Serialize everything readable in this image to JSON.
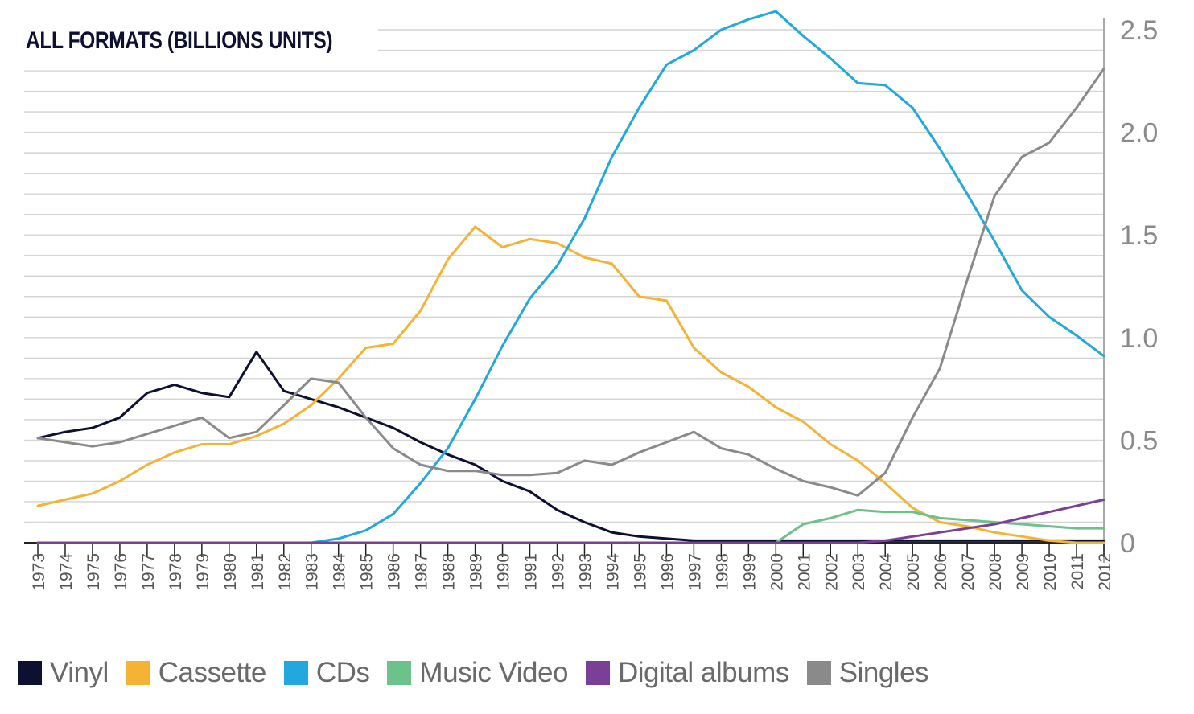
{
  "chart_data": {
    "type": "line",
    "title": "ALL FORMATS (BILLIONS UNITS)",
    "xlabel": "",
    "ylabel": "",
    "ylim": [
      0,
      2.5
    ],
    "yticks": [
      "0",
      "0.5",
      "1.0",
      "1.5",
      "2.0",
      "2.5"
    ],
    "yaxis_side": "right",
    "grid": true,
    "legend_position": "bottom",
    "categories": [
      "1973",
      "1974",
      "1975",
      "1976",
      "1977",
      "1978",
      "1979",
      "1980",
      "1981",
      "1982",
      "1983",
      "1984",
      "1985",
      "1986",
      "1987",
      "1988",
      "1989",
      "1990",
      "1991",
      "1992",
      "1993",
      "1994",
      "1995",
      "1996",
      "1997",
      "1998",
      "1999",
      "2000",
      "2001",
      "2002",
      "2003",
      "2004",
      "2005",
      "2006",
      "2007",
      "2008",
      "2009",
      "2010",
      "2011",
      "2012"
    ],
    "series": [
      {
        "name": "Vinyl",
        "color": "#0d1030",
        "values": [
          0.51,
          0.54,
          0.56,
          0.61,
          0.73,
          0.77,
          0.73,
          0.71,
          0.93,
          0.74,
          0.7,
          0.66,
          0.61,
          0.56,
          0.49,
          0.43,
          0.38,
          0.3,
          0.25,
          0.16,
          0.1,
          0.05,
          0.03,
          0.02,
          0.01,
          0.01,
          0.01,
          0.01,
          0.01,
          0.01,
          0.01,
          0.01,
          0.01,
          0.01,
          0.01,
          0.01,
          0.01,
          0.01,
          0.01,
          0.01
        ]
      },
      {
        "name": "Cassette",
        "color": "#f5b335",
        "values": [
          0.18,
          0.21,
          0.24,
          0.3,
          0.38,
          0.44,
          0.48,
          0.48,
          0.52,
          0.58,
          0.67,
          0.8,
          0.95,
          0.97,
          1.13,
          1.38,
          1.54,
          1.44,
          1.48,
          1.46,
          1.39,
          1.36,
          1.2,
          1.18,
          0.95,
          0.83,
          0.76,
          0.66,
          0.59,
          0.48,
          0.4,
          0.29,
          0.17,
          0.1,
          0.08,
          0.05,
          0.03,
          0.01,
          0.0,
          0.0
        ]
      },
      {
        "name": "CDs",
        "color": "#20a8df",
        "values": [
          0.0,
          0.0,
          0.0,
          0.0,
          0.0,
          0.0,
          0.0,
          0.0,
          0.0,
          0.0,
          0.0,
          0.02,
          0.06,
          0.14,
          0.29,
          0.46,
          0.7,
          0.96,
          1.19,
          1.35,
          1.58,
          1.88,
          2.12,
          2.33,
          2.4,
          2.5,
          2.55,
          2.59,
          2.47,
          2.36,
          2.24,
          2.23,
          2.12,
          1.92,
          1.7,
          1.47,
          1.23,
          1.1,
          1.01,
          0.91
        ]
      },
      {
        "name": "Music Video",
        "color": "#6cc28a",
        "values": [
          0,
          0,
          0,
          0,
          0,
          0,
          0,
          0,
          0,
          0,
          0,
          0,
          0,
          0,
          0,
          0,
          0,
          0,
          0,
          0,
          0,
          0,
          0,
          0,
          0,
          0,
          0,
          0,
          0.09,
          0.12,
          0.16,
          0.15,
          0.15,
          0.12,
          0.11,
          0.1,
          0.09,
          0.08,
          0.07,
          0.07
        ]
      },
      {
        "name": "Digital albums",
        "color": "#7b3f98",
        "values": [
          0,
          0,
          0,
          0,
          0,
          0,
          0,
          0,
          0,
          0,
          0,
          0,
          0,
          0,
          0,
          0,
          0,
          0,
          0,
          0,
          0,
          0,
          0,
          0,
          0,
          0,
          0,
          0,
          0,
          0,
          0,
          0.01,
          0.03,
          0.05,
          0.07,
          0.09,
          0.12,
          0.15,
          0.18,
          0.21
        ]
      },
      {
        "name": "Singles",
        "color": "#8a8a8a",
        "values": [
          0.51,
          0.49,
          0.47,
          0.49,
          0.53,
          0.57,
          0.61,
          0.51,
          0.54,
          0.67,
          0.8,
          0.78,
          0.61,
          0.46,
          0.38,
          0.35,
          0.35,
          0.33,
          0.33,
          0.34,
          0.4,
          0.38,
          0.44,
          0.49,
          0.54,
          0.46,
          0.43,
          0.36,
          0.3,
          0.27,
          0.23,
          0.34,
          0.61,
          0.85,
          1.28,
          1.69,
          1.88,
          1.95,
          2.12,
          2.31
        ]
      }
    ]
  }
}
